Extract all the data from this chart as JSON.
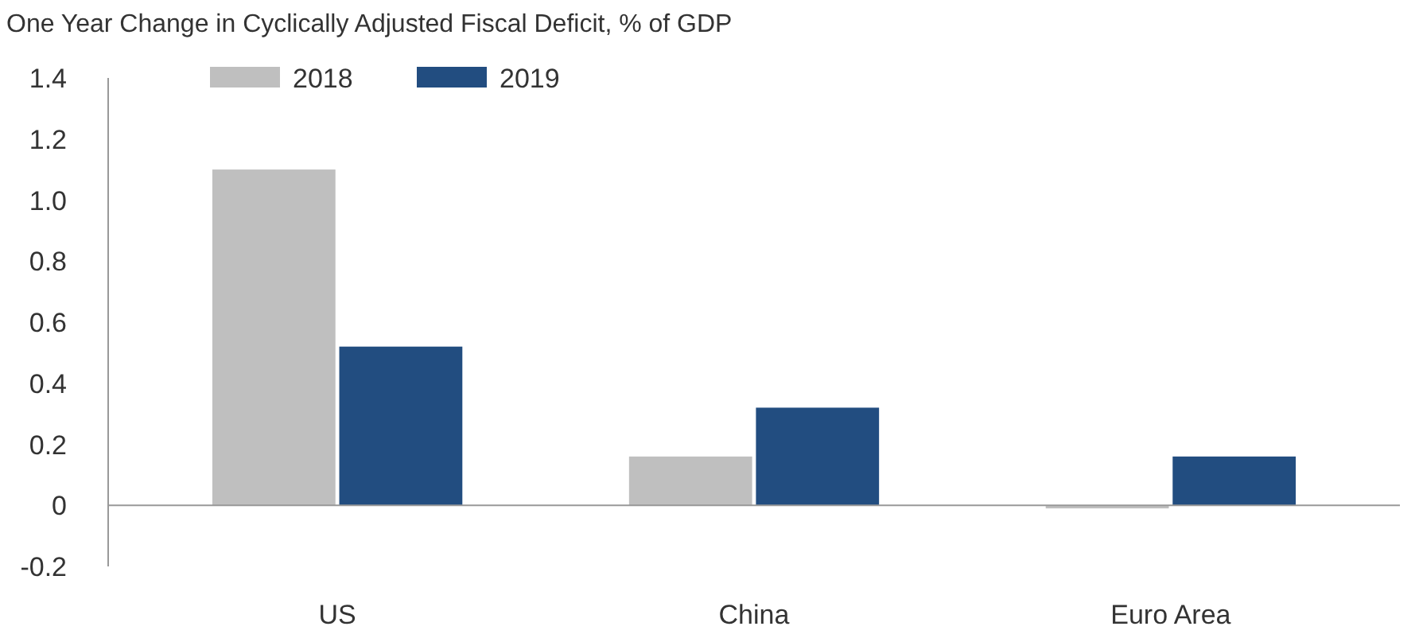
{
  "chart_data": {
    "type": "bar",
    "title": "One Year Change in Cyclically Adjusted Fiscal Deficit, % of GDP",
    "categories": [
      "US",
      "China",
      "Euro Area"
    ],
    "series": [
      {
        "name": "2018",
        "color": "#bfbfbf",
        "values": [
          1.1,
          0.16,
          -0.01
        ]
      },
      {
        "name": "2019",
        "color": "#224d80",
        "values": [
          0.52,
          0.32,
          0.16
        ]
      }
    ],
    "ylim": [
      -0.2,
      1.4
    ],
    "yticks": [
      -0.2,
      0,
      0.2,
      0.4,
      0.6,
      0.8,
      {
        "value": 1,
        "label": "1.0"
      },
      1.2,
      1.4
    ],
    "legend": "top left"
  }
}
